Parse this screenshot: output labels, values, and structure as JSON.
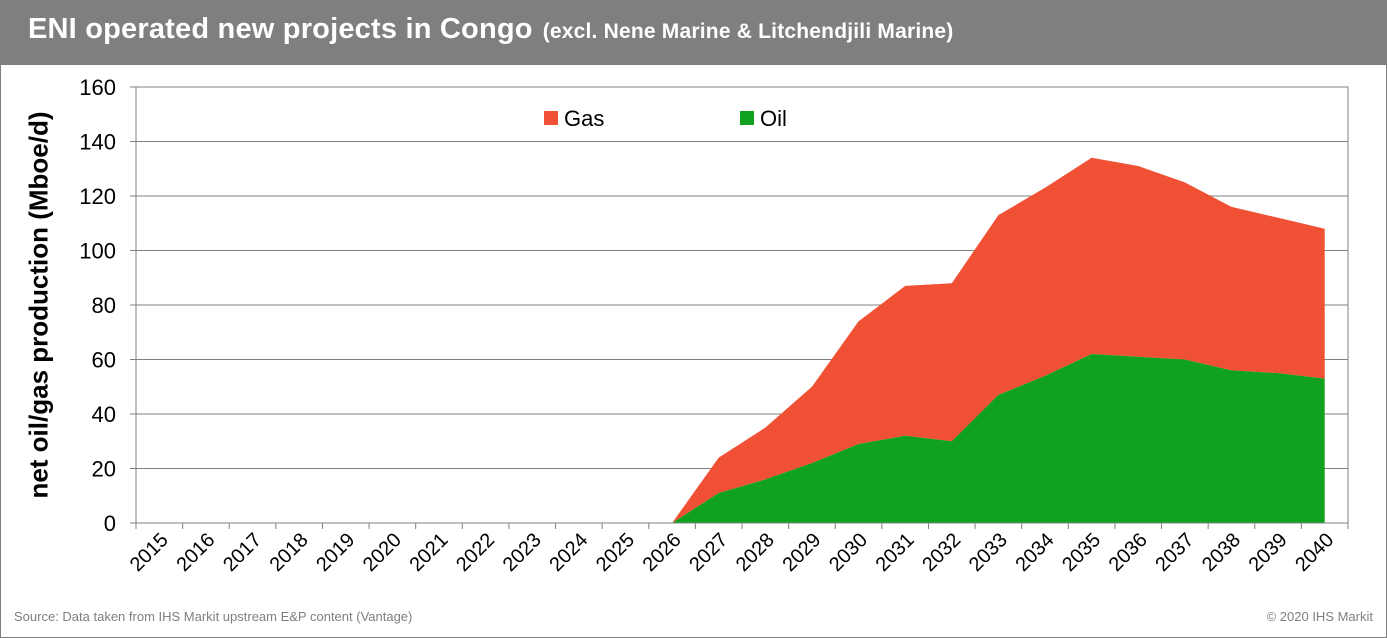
{
  "title": "ENI operated new projects in Congo",
  "subtitle": "(excl. Nene Marine & Litchendjili Marine)",
  "footer": {
    "source": "Source: Data taken from IHS Markit upstream  E&P content (Vantage)",
    "copyright": "© 2020 IHS Markit"
  },
  "colors": {
    "gas": "#f05033",
    "oil": "#10a21f",
    "title_bar": "#7f7f7f",
    "grid": "#808080"
  },
  "chart_data": {
    "type": "area",
    "stacked": true,
    "ylabel": "net oil/gas production (Mboe/d)",
    "xlabel": "",
    "ylim": [
      0,
      160
    ],
    "yticks": [
      0,
      20,
      40,
      60,
      80,
      100,
      120,
      140,
      160
    ],
    "grid": true,
    "legend_position": "top",
    "x": [
      "2015",
      "2016",
      "2017",
      "2018",
      "2019",
      "2020",
      "2021",
      "2022",
      "2023",
      "2024",
      "2025",
      "2026",
      "2027",
      "2028",
      "2029",
      "2030",
      "2031",
      "2032",
      "2033",
      "2034",
      "2035",
      "2036",
      "2037",
      "2038",
      "2039",
      "2040"
    ],
    "series": [
      {
        "name": "Oil",
        "color": "#10a21f",
        "values": [
          0,
          0,
          0,
          0,
          0,
          0,
          0,
          0,
          0,
          0,
          0,
          0,
          11,
          16,
          22,
          29,
          32,
          30,
          47,
          54,
          62,
          61,
          60,
          56,
          55,
          53
        ]
      },
      {
        "name": "Gas",
        "color": "#f05033",
        "values": [
          0,
          0,
          0,
          0,
          0,
          0,
          0,
          0,
          0,
          0,
          0,
          0,
          13,
          19,
          28,
          45,
          55,
          58,
          66,
          69,
          72,
          70,
          65,
          60,
          57,
          55
        ]
      }
    ]
  }
}
